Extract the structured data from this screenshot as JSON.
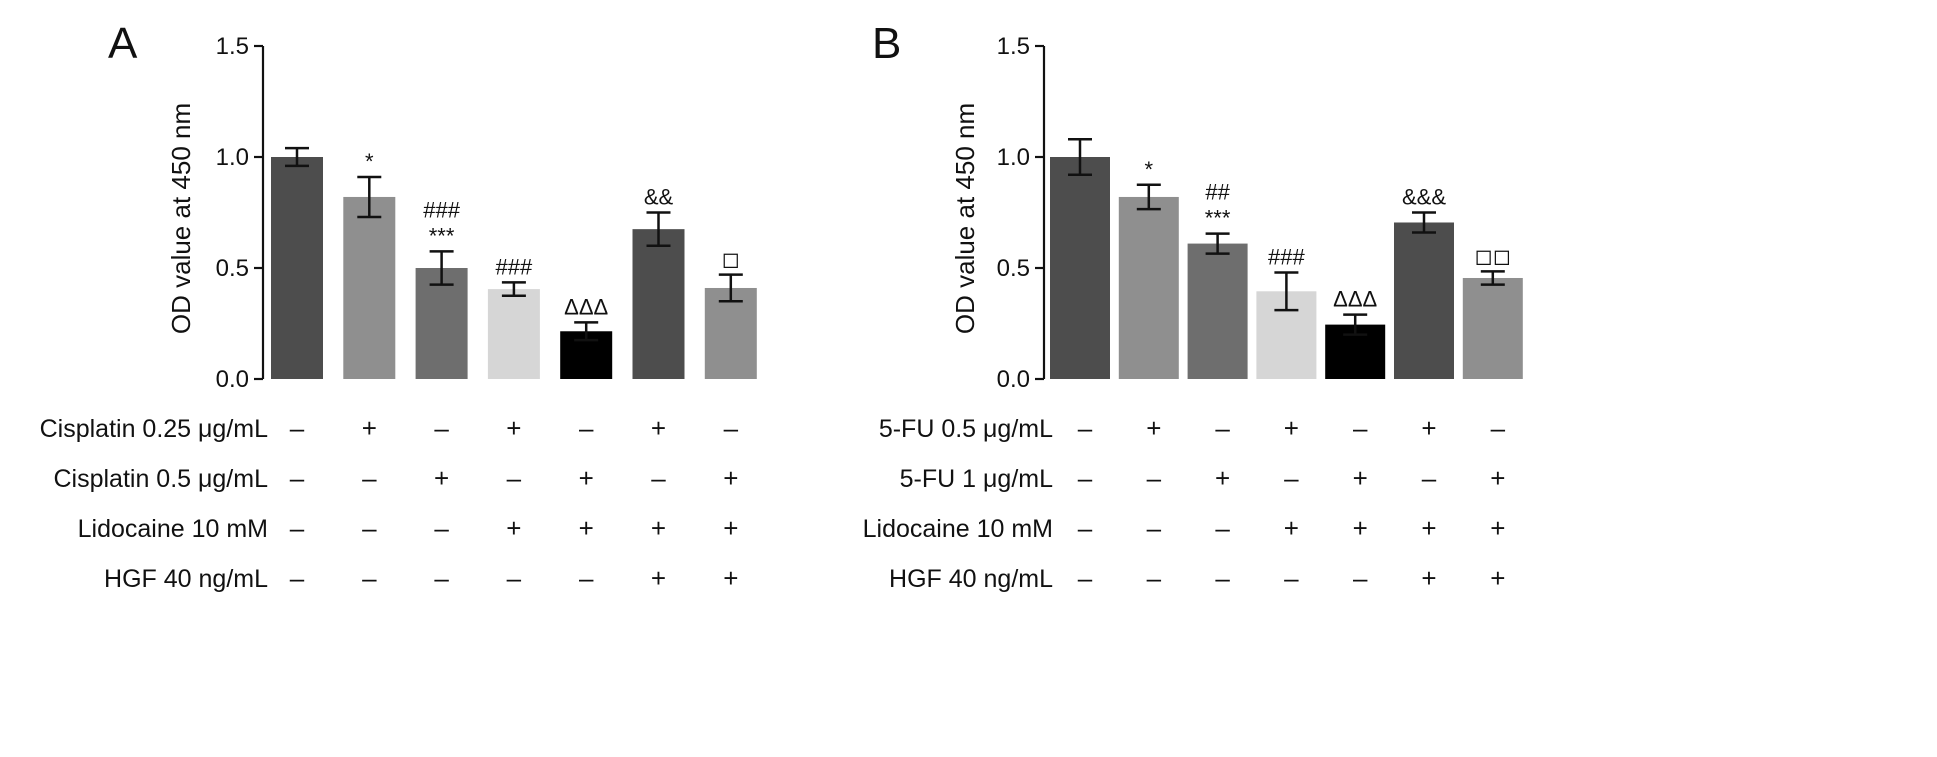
{
  "chart_data": [
    {
      "type": "bar",
      "panel": "A",
      "ylabel": "OD value at 450 nm",
      "ylim": [
        0,
        1.5
      ],
      "yticks": [
        "0.0",
        "0.5",
        "1.0",
        "1.5"
      ],
      "grid": false,
      "values": [
        1.0,
        0.82,
        0.5,
        0.405,
        0.215,
        0.675,
        0.41
      ],
      "errors": [
        0.04,
        0.09,
        0.075,
        0.03,
        0.04,
        0.075,
        0.06
      ],
      "colors": [
        "#4d4d4d",
        "#8f8f8f",
        "#6e6e6e",
        "#d6d6d6",
        "#000000",
        "#4d4d4d",
        "#8f8f8f"
      ],
      "annotations": [
        [],
        [
          "*"
        ],
        [
          "###",
          "***"
        ],
        [
          "###"
        ],
        [
          "ΔΔΔ"
        ],
        [
          "&&"
        ],
        [
          "◻"
        ]
      ],
      "conditions": [
        {
          "label": "Cisplatin 0.25 μg/mL",
          "signs": [
            "–",
            "+",
            "–",
            "+",
            "–",
            "+",
            "–"
          ]
        },
        {
          "label": "Cisplatin 0.5 μg/mL",
          "signs": [
            "–",
            "–",
            "+",
            "–",
            "+",
            "–",
            "+"
          ]
        },
        {
          "label": "Lidocaine 10 mM",
          "signs": [
            "–",
            "–",
            "–",
            "+",
            "+",
            "+",
            "+"
          ]
        },
        {
          "label": "HGF 40 ng/mL",
          "signs": [
            "–",
            "–",
            "–",
            "–",
            "–",
            "+",
            "+"
          ]
        }
      ]
    },
    {
      "type": "bar",
      "panel": "B",
      "ylabel": "OD value at 450 nm",
      "ylim": [
        0,
        1.5
      ],
      "yticks": [
        "0.0",
        "0.5",
        "1.0",
        "1.5"
      ],
      "grid": false,
      "values": [
        1.0,
        0.82,
        0.61,
        0.395,
        0.245,
        0.705,
        0.455
      ],
      "errors": [
        0.08,
        0.055,
        0.045,
        0.085,
        0.045,
        0.045,
        0.03
      ],
      "colors": [
        "#4d4d4d",
        "#8f8f8f",
        "#6e6e6e",
        "#d6d6d6",
        "#000000",
        "#4d4d4d",
        "#8f8f8f"
      ],
      "annotations": [
        [],
        [
          "*"
        ],
        [
          "##",
          "***"
        ],
        [
          "###"
        ],
        [
          "ΔΔΔ"
        ],
        [
          "&&&"
        ],
        [
          "◻◻"
        ]
      ],
      "conditions": [
        {
          "label": "5-FU 0.5 μg/mL",
          "signs": [
            "–",
            "+",
            "–",
            "+",
            "–",
            "+",
            "–"
          ]
        },
        {
          "label": "5-FU 1 μg/mL",
          "signs": [
            "–",
            "–",
            "+",
            "–",
            "+",
            "–",
            "+"
          ]
        },
        {
          "label": "Lidocaine 10 mM",
          "signs": [
            "–",
            "–",
            "–",
            "+",
            "+",
            "+",
            "+"
          ]
        },
        {
          "label": "HGF 40 ng/mL",
          "signs": [
            "–",
            "–",
            "–",
            "–",
            "–",
            "+",
            "+"
          ]
        }
      ]
    }
  ]
}
